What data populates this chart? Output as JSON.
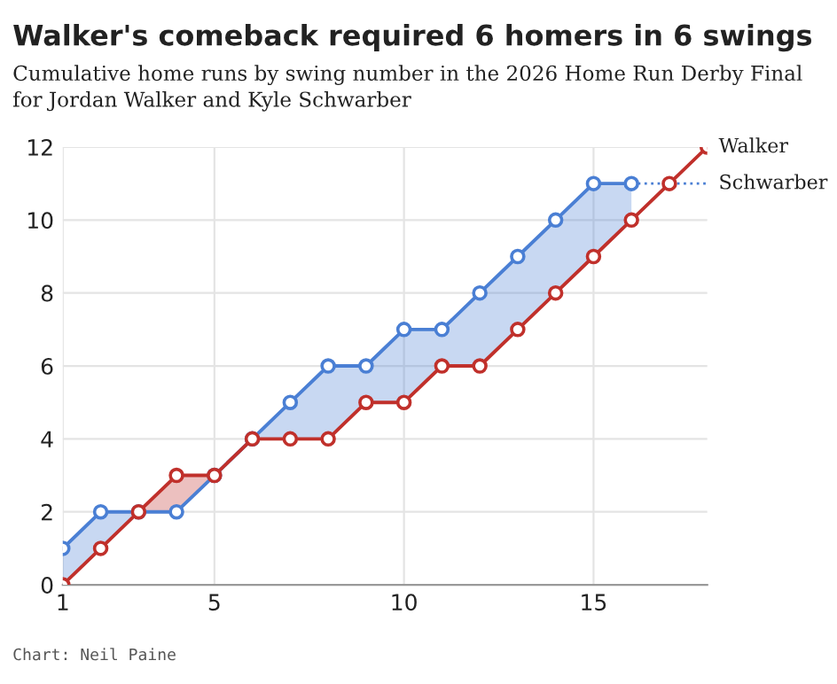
{
  "chart_data": {
    "type": "line",
    "title": "Walker's comeback required 6 homers in 6 swings",
    "subtitle": "Cumulative home runs by swing number in the 2026 Home Run Derby Final for Jordan Walker and Kyle Schwarber",
    "series": [
      {
        "name": "Walker",
        "color": "#c0302b",
        "x": [
          1,
          2,
          3,
          4,
          5,
          6,
          7,
          8,
          9,
          10,
          11,
          12,
          13,
          14,
          15,
          16,
          17,
          18
        ],
        "values": [
          0,
          1,
          2,
          3,
          3,
          4,
          4,
          4,
          5,
          5,
          6,
          6,
          7,
          8,
          9,
          10,
          11,
          12
        ],
        "lower": [
          null,
          null,
          2,
          2,
          3,
          null,
          null,
          null,
          null,
          null,
          null,
          null,
          null,
          null,
          null,
          null,
          null,
          null
        ],
        "upper": [
          null,
          null,
          2,
          3,
          3,
          null,
          null,
          null,
          null,
          null,
          null,
          null,
          null,
          null,
          null,
          null,
          null,
          null
        ]
      },
      {
        "name": "Schwarber",
        "color": "#4a7fd4",
        "x": [
          1,
          2,
          3,
          4,
          5,
          6,
          7,
          8,
          9,
          10,
          11,
          12,
          13,
          14,
          15,
          16
        ],
        "values": [
          1,
          2,
          2,
          2,
          3,
          4,
          5,
          6,
          6,
          7,
          7,
          8,
          9,
          10,
          11,
          11
        ],
        "lower": [
          0,
          1,
          2,
          null,
          3,
          4,
          4,
          4,
          5,
          5,
          6,
          6,
          7,
          8,
          9,
          10
        ],
        "upper": [
          1,
          2,
          2,
          null,
          3,
          4,
          5,
          6,
          6,
          7,
          7,
          8,
          9,
          10,
          11,
          11
        ]
      }
    ],
    "xlim": [
      1,
      18
    ],
    "xticks": [
      1,
      5,
      10,
      15
    ],
    "ylim": [
      0,
      12
    ],
    "yticks": [
      0,
      2,
      4,
      6,
      8,
      10,
      12
    ],
    "grid": true,
    "legend": "right",
    "marker": "circle",
    "line_style": "solid",
    "annotations": [
      "Chart: Neil Paine"
    ]
  }
}
